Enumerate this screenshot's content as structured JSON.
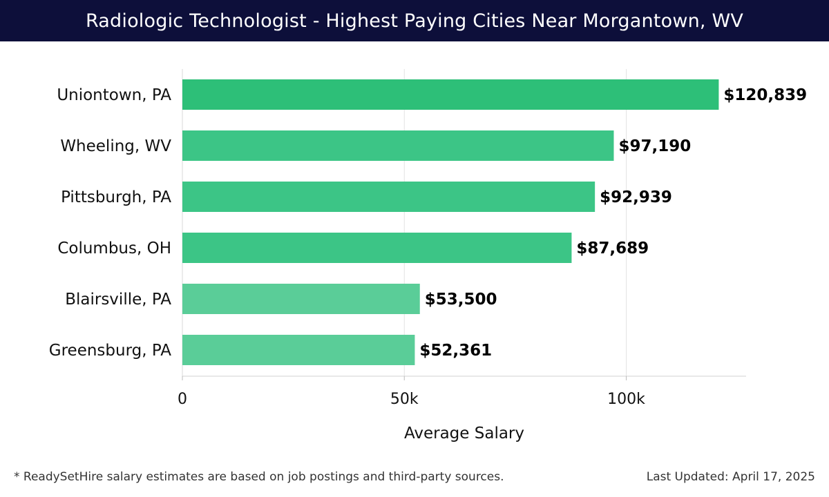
{
  "header": {
    "title": "Radiologic Technologist - Highest Paying Cities Near Morgantown, WV"
  },
  "chart_data": {
    "type": "bar",
    "orientation": "horizontal",
    "title": "Radiologic Technologist - Highest Paying Cities Near Morgantown, WV",
    "xlabel": "Average Salary",
    "ylabel": "",
    "xlim": [
      0,
      127000
    ],
    "x_ticks": [
      0,
      50000,
      100000
    ],
    "x_tick_labels": [
      "0",
      "50k",
      "100k"
    ],
    "grid": true,
    "categories": [
      "Uniontown, PA",
      "Wheeling, WV",
      "Pittsburgh, PA",
      "Columbus, OH",
      "Blairsville, PA",
      "Greensburg, PA"
    ],
    "values": [
      120839,
      97190,
      92939,
      87689,
      53500,
      52361
    ],
    "value_labels": [
      "$120,839",
      "$97,190",
      "$92,939",
      "$87,689",
      "$53,500",
      "$52,361"
    ],
    "colors": [
      "#2dbf78",
      "#3cc586",
      "#3cc586",
      "#3cc586",
      "#5acd98",
      "#5acd98"
    ]
  },
  "footer": {
    "note": "* ReadySetHire salary estimates are based on job postings and third-party sources.",
    "updated": "Last Updated: April 17, 2025"
  }
}
